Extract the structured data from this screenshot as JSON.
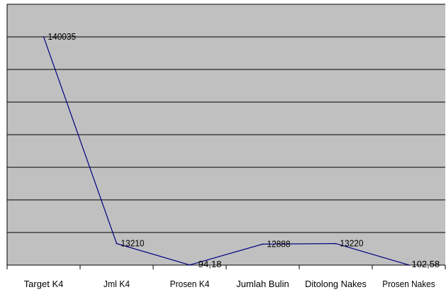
{
  "chart_data": {
    "type": "line",
    "categories": [
      "Target K4",
      "Jml K4",
      "Prosen K4",
      "Jumlah Bulin",
      "Ditolong Nakes",
      "Prosen Nakes"
    ],
    "series": [
      {
        "values": [
          140035,
          13210,
          94.18,
          12888,
          13220,
          102.58
        ]
      }
    ],
    "data_labels": [
      "140035",
      "13210",
      "94,18",
      "12888",
      "13220",
      "102,58"
    ],
    "ylim": [
      0,
      160000
    ],
    "y_gridline_step": 20000,
    "grid": true,
    "legend": "none",
    "y_tick_labels_visible": false,
    "colors": {
      "plot_background": "#c0c0c0",
      "line": "#000080",
      "gridline": "#000000",
      "axis": "#000000"
    }
  }
}
